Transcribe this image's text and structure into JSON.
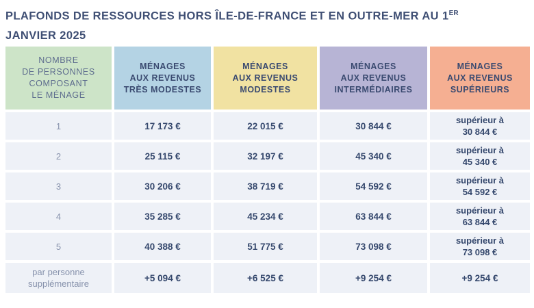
{
  "title": {
    "line1": "PLAFONDS DE RESSOURCES HORS ÎLE-DE-FRANCE ET EN OUTRE-MER AU 1",
    "superscript": "ER",
    "line2": "JANVIER 2025"
  },
  "colors": {
    "title_text": "#3f4f74",
    "header_text": "#3a4a70",
    "value_text": "#35486d",
    "row_label_text": "#8792ac",
    "data_cell_background": "#eef1f7",
    "header_green": "#cde4c8",
    "header_blue": "#b4d3e4",
    "header_yellow": "#f1e2a2",
    "header_purple": "#b7b4d5",
    "header_orange": "#f5af92"
  },
  "table": {
    "headers": [
      {
        "label": "Nombre\nde personnes\ncomposant\nle ménage",
        "bg": "#cde4c8"
      },
      {
        "label": "Ménages\naux revenus\ntrès modestes",
        "bg": "#b4d3e4"
      },
      {
        "label": "Ménages\naux revenus\nmodestes",
        "bg": "#f1e2a2"
      },
      {
        "label": "Ménages\naux revenus\nintermédiaires",
        "bg": "#b7b4d5"
      },
      {
        "label": "Ménages\naux revenus\nsupérieurs",
        "bg": "#f5af92"
      }
    ],
    "rows": [
      {
        "cells": [
          "1",
          "17 173 €",
          "22 015 €",
          "30 844 €",
          "supérieur à\n30 844 €"
        ]
      },
      {
        "cells": [
          "2",
          "25 115 €",
          "32 197 €",
          "45 340 €",
          "supérieur à\n45 340 €"
        ]
      },
      {
        "cells": [
          "3",
          "30 206 €",
          "38 719 €",
          "54 592 €",
          "supérieur à\n54 592 €"
        ]
      },
      {
        "cells": [
          "4",
          "35 285 €",
          "45 234 €",
          "63 844 €",
          "supérieur à\n63 844 €"
        ]
      },
      {
        "cells": [
          "5",
          "40 388 €",
          "51 775 €",
          "73 098 €",
          "supérieur à\n73 098 €"
        ]
      },
      {
        "cells": [
          "par personne\nsupplémentaire",
          "+5 094 €",
          "+6 525 €",
          "+9 254 €",
          "+9 254 €"
        ]
      }
    ]
  }
}
